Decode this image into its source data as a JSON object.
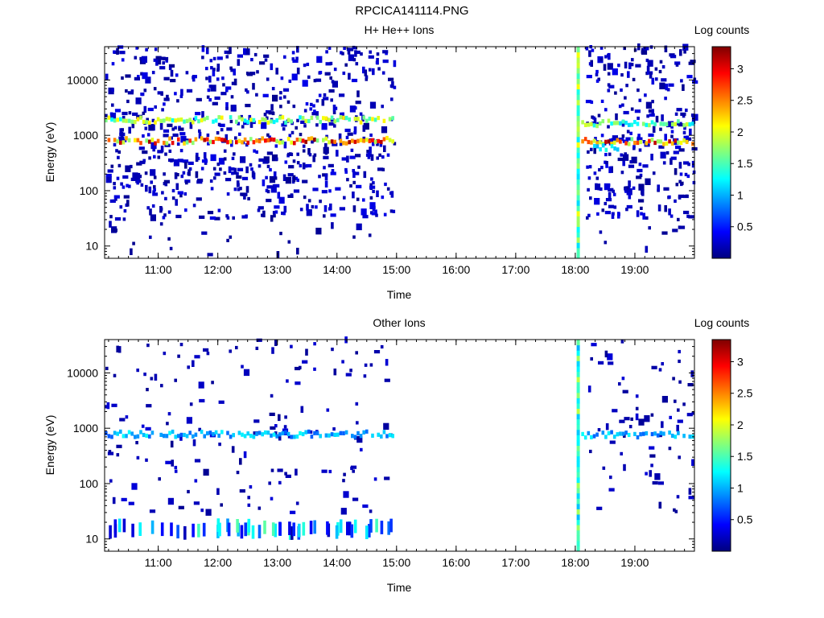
{
  "figure": {
    "title": "RPCICA141114.PNG"
  },
  "colors": {
    "colormap": [
      "#00007f",
      "#0000ff",
      "#007fff",
      "#00ffff",
      "#7fff7f",
      "#ffff00",
      "#ff7f00",
      "#ff0000",
      "#7f0000"
    ],
    "frame": "#000000",
    "background": "#ffffff"
  },
  "chart_data": [
    {
      "type": "heatmap",
      "title": "H+ He++ Ions",
      "xlabel": "Time",
      "ylabel": "Energy (eV)",
      "colorbar_label": "Log counts",
      "x_unit": "hours",
      "xlim": [
        10.1,
        20.0
      ],
      "ylim": [
        6,
        40000
      ],
      "y_scale": "log",
      "x_ticks": [
        {
          "value": 11,
          "label": "11:00"
        },
        {
          "value": 12,
          "label": "12:00"
        },
        {
          "value": 13,
          "label": "13:00"
        },
        {
          "value": 14,
          "label": "14:00"
        },
        {
          "value": 15,
          "label": "15:00"
        },
        {
          "value": 16,
          "label": "16:00"
        },
        {
          "value": 17,
          "label": "17:00"
        },
        {
          "value": 18,
          "label": "18:00"
        },
        {
          "value": 19,
          "label": "19:00"
        }
      ],
      "y_ticks": [
        {
          "value": 10,
          "label": "10"
        },
        {
          "value": 100,
          "label": "100"
        },
        {
          "value": 1000,
          "label": "1000"
        },
        {
          "value": 10000,
          "label": "10000"
        }
      ],
      "colorbar_range": [
        0,
        3.35
      ],
      "colorbar_ticks": [
        {
          "value": 0.5,
          "label": "0.5"
        },
        {
          "value": 1,
          "label": "1"
        },
        {
          "value": 1.5,
          "label": "1.5"
        },
        {
          "value": 2,
          "label": "2"
        },
        {
          "value": 2.5,
          "label": "2.5"
        },
        {
          "value": 3,
          "label": "3"
        }
      ],
      "data_gap": [
        15.0,
        18.05
      ],
      "bands": [
        {
          "t_start": 10.1,
          "t_end": 14.95,
          "energy": 1900,
          "level_min": 1.2,
          "level_max": 2.2
        },
        {
          "t_start": 10.1,
          "t_end": 14.95,
          "energy": 800,
          "level_min": 1.6,
          "level_max": 3.3
        },
        {
          "t_start": 18.1,
          "t_end": 20.0,
          "energy": 1650,
          "level_min": 1.1,
          "level_max": 2.0
        },
        {
          "t_start": 18.1,
          "t_end": 20.0,
          "energy": 780,
          "level_min": 1.6,
          "level_max": 3.3
        },
        {
          "t_start": 18.3,
          "t_end": 18.7,
          "energy": 600,
          "level_min": 1.0,
          "level_max": 1.4
        }
      ],
      "spikes": [
        {
          "t": 18.05,
          "e_min": 6,
          "e_max": 40000,
          "level_min": 1.1,
          "level_max": 2.1
        }
      ],
      "noise": [
        {
          "t_start": 10.1,
          "t_end": 14.95,
          "e_min": 30,
          "e_max": 40000,
          "count": 700,
          "level_min": 0.05,
          "level_max": 0.35
        },
        {
          "t_start": 18.15,
          "t_end": 20.0,
          "e_min": 30,
          "e_max": 40000,
          "count": 280,
          "level_min": 0.05,
          "level_max": 0.35
        },
        {
          "t_start": 10.1,
          "t_end": 14.95,
          "e_min": 7,
          "e_max": 30,
          "count": 22,
          "level_min": 0.05,
          "level_max": 0.2
        },
        {
          "t_start": 18.15,
          "t_end": 20.0,
          "e_min": 7,
          "e_max": 30,
          "count": 8,
          "level_min": 0.05,
          "level_max": 0.2
        }
      ],
      "low_band": null
    },
    {
      "type": "heatmap",
      "title": "Other Ions",
      "xlabel": "Time",
      "ylabel": "Energy (eV)",
      "colorbar_label": "Log counts",
      "x_unit": "hours",
      "xlim": [
        10.1,
        20.0
      ],
      "ylim": [
        6,
        40000
      ],
      "y_scale": "log",
      "x_ticks": [
        {
          "value": 11,
          "label": "11:00"
        },
        {
          "value": 12,
          "label": "12:00"
        },
        {
          "value": 13,
          "label": "13:00"
        },
        {
          "value": 14,
          "label": "14:00"
        },
        {
          "value": 15,
          "label": "15:00"
        },
        {
          "value": 16,
          "label": "16:00"
        },
        {
          "value": 17,
          "label": "17:00"
        },
        {
          "value": 18,
          "label": "18:00"
        },
        {
          "value": 19,
          "label": "19:00"
        }
      ],
      "y_ticks": [
        {
          "value": 10,
          "label": "10"
        },
        {
          "value": 100,
          "label": "100"
        },
        {
          "value": 1000,
          "label": "1000"
        },
        {
          "value": 10000,
          "label": "10000"
        }
      ],
      "colorbar_range": [
        0,
        3.35
      ],
      "colorbar_ticks": [
        {
          "value": 0.5,
          "label": "0.5"
        },
        {
          "value": 1,
          "label": "1"
        },
        {
          "value": 1.5,
          "label": "1.5"
        },
        {
          "value": 2,
          "label": "2"
        },
        {
          "value": 2.5,
          "label": "2.5"
        },
        {
          "value": 3,
          "label": "3"
        }
      ],
      "data_gap": [
        15.0,
        18.05
      ],
      "bands": [
        {
          "t_start": 10.1,
          "t_end": 14.95,
          "energy": 780,
          "level_min": 0.7,
          "level_max": 1.3
        },
        {
          "t_start": 18.1,
          "t_end": 20.0,
          "energy": 760,
          "level_min": 0.7,
          "level_max": 1.3
        }
      ],
      "spikes": [
        {
          "t": 18.05,
          "e_min": 6,
          "e_max": 40000,
          "level_min": 1.0,
          "level_max": 1.9
        }
      ],
      "noise": [
        {
          "t_start": 10.1,
          "t_end": 14.95,
          "e_min": 30,
          "e_max": 40000,
          "count": 160,
          "level_min": 0.05,
          "level_max": 0.3
        },
        {
          "t_start": 18.15,
          "t_end": 20.0,
          "e_min": 30,
          "e_max": 40000,
          "count": 70,
          "level_min": 0.05,
          "level_max": 0.3
        }
      ],
      "low_band": {
        "t_start": 10.1,
        "t_end": 14.95,
        "energy": 15,
        "count": 60,
        "level_min": 0.1,
        "level_max": 1.6
      }
    }
  ]
}
